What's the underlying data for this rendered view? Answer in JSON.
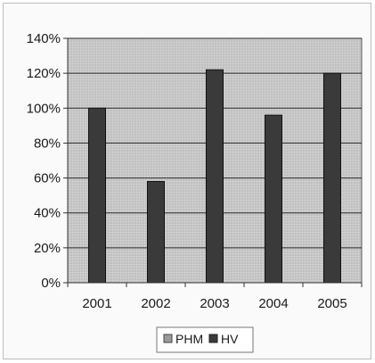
{
  "chart_data": {
    "type": "bar",
    "categories": [
      "2001",
      "2002",
      "2003",
      "2004",
      "2005"
    ],
    "series": [
      {
        "name": "PHM",
        "values": [
          null,
          null,
          null,
          null,
          null
        ]
      },
      {
        "name": "HV",
        "values": [
          100,
          58,
          122,
          96,
          120
        ]
      }
    ],
    "title": "",
    "xlabel": "",
    "ylabel": "",
    "ylim": [
      0,
      140
    ],
    "yticks": [
      "0%",
      "20%",
      "40%",
      "60%",
      "80%",
      "100%",
      "120%",
      "140%"
    ],
    "grid": true,
    "legend_position": "bottom",
    "colors": {
      "plot_background": "#c8c8c8",
      "gridline": "#2b2b2b",
      "bar_fill": "#3a3a3a",
      "bar_stroke": "#111111",
      "legend_phm": "#9a9a9a",
      "legend_hv": "#3a3a3a"
    }
  }
}
